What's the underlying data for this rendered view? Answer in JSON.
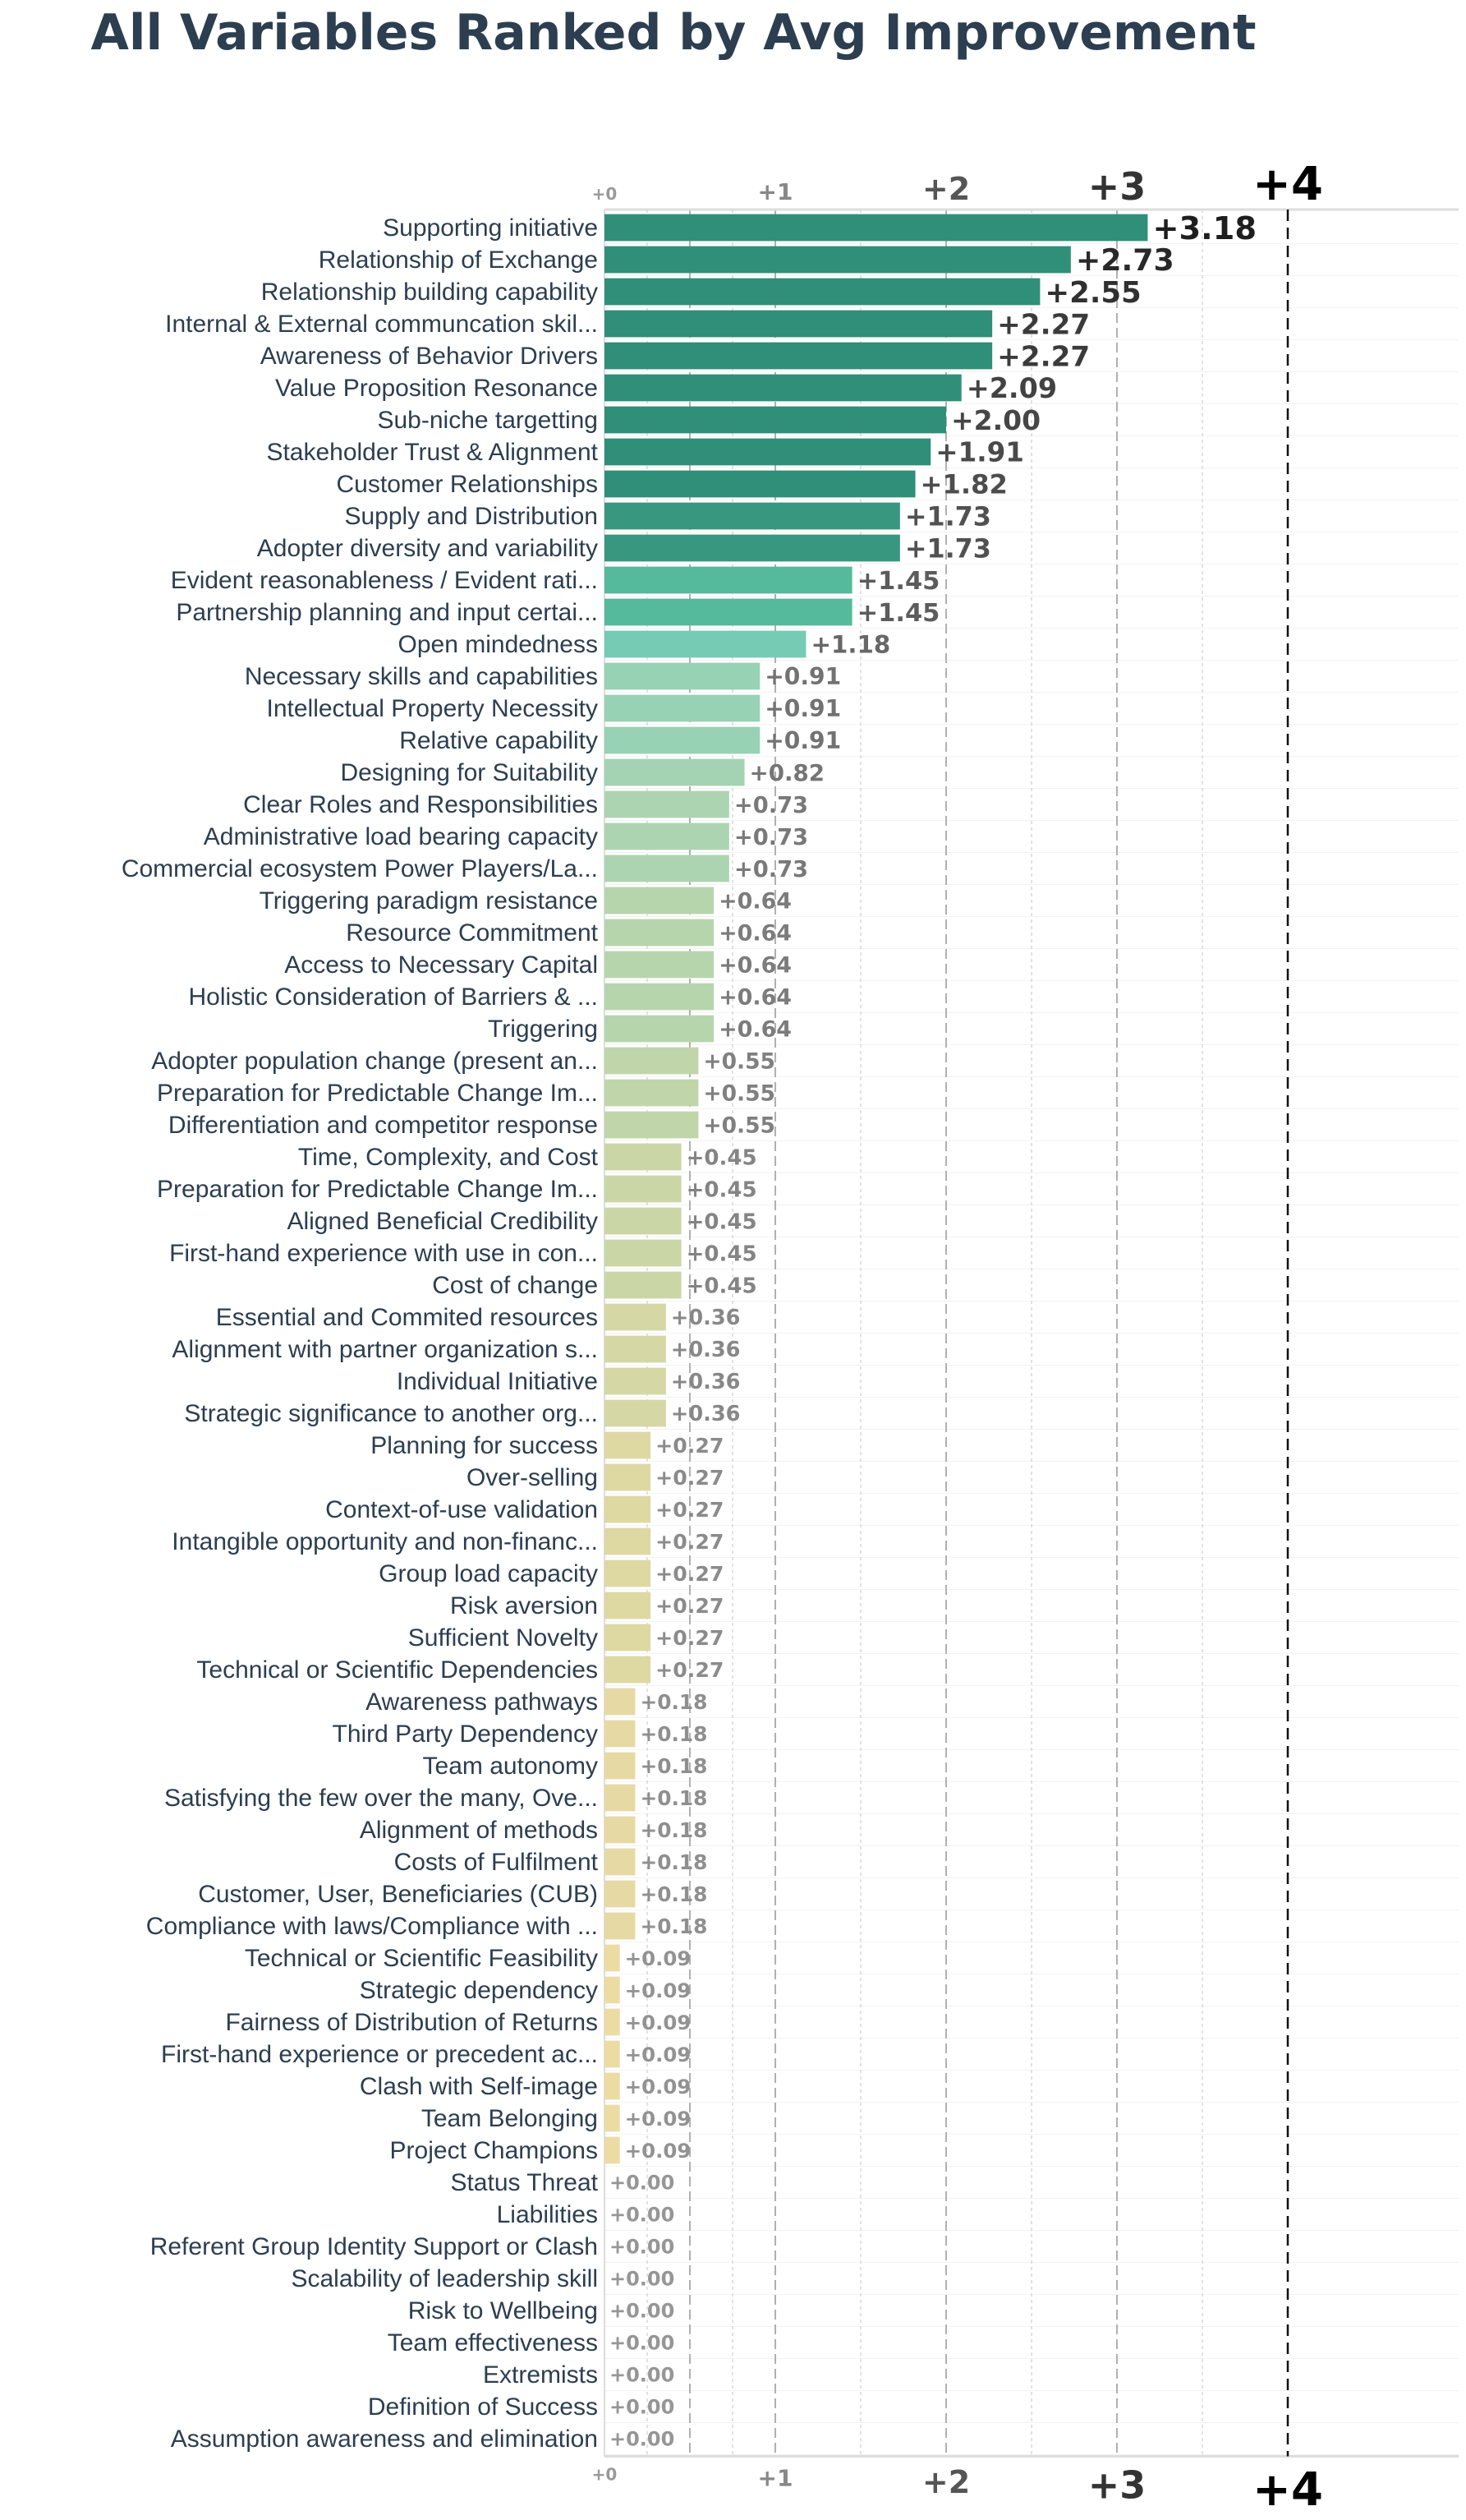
{
  "chart_data": {
    "type": "bar",
    "orientation": "horizontal",
    "title": "All Variables Ranked by Avg Improvement",
    "xlabel": "",
    "ylabel": "",
    "xlim": [
      0,
      5
    ],
    "xticks": [
      "+0",
      "+1",
      "+2",
      "+3",
      "+4"
    ],
    "reference_line": 4,
    "grid": true,
    "colorscale": [
      "#f3dfa6",
      "#e4d8a2",
      "#c7d6a8",
      "#a6d3b2",
      "#7dcfb8",
      "#55b99c",
      "#2f8f78"
    ],
    "categories": [
      "Supporting initiative",
      "Relationship of Exchange",
      "Relationship building capability",
      "Internal & External communcation skil...",
      "Awareness of Behavior Drivers",
      "Value Proposition Resonance",
      "Sub-niche targetting",
      "Stakeholder Trust & Alignment",
      "Customer Relationships",
      "Supply and Distribution",
      "Adopter diversity and variability",
      "Evident reasonableness / Evident rati...",
      "Partnership planning and input certai...",
      "Open mindedness",
      "Necessary skills and capabilities",
      "Intellectual Property Necessity",
      "Relative capability",
      "Designing for Suitability",
      "Clear Roles and Responsibilities",
      "Administrative load bearing capacity",
      "Commercial ecosystem Power Players/La...",
      "Triggering paradigm resistance",
      "Resource Commitment",
      "Access to Necessary Capital",
      "Holistic Consideration of Barriers & ...",
      "Triggering",
      "Adopter population change (present an...",
      "Preparation for Predictable Change Im...",
      "Differentiation and competitor response",
      "Time, Complexity, and Cost",
      "Preparation for Predictable Change Im...",
      "Aligned Beneficial Credibility",
      "First-hand experience with use in con...",
      "Cost of change",
      "Essential and Commited resources",
      "Alignment with partner organization s...",
      "Individual Initiative",
      "Strategic significance to another org...",
      "Planning for success",
      "Over-selling",
      "Context-of-use validation",
      "Intangible opportunity and non-financ...",
      "Group load capacity",
      "Risk aversion",
      "Sufficient Novelty",
      "Technical or Scientific Dependencies",
      "Awareness pathways",
      "Third Party Dependency",
      "Team autonomy",
      "Satisfying the few over the many, Ove...",
      "Alignment of methods",
      "Costs of Fulfilment",
      "Customer, User, Beneficiaries (CUB)",
      "Compliance with laws/Compliance with ...",
      "Technical or Scientific Feasibility",
      "Strategic dependency",
      "Fairness of Distribution of Returns",
      "First-hand experience or precedent ac...",
      "Clash with Self-image",
      "Team Belonging",
      "Project Champions",
      "Status Threat",
      "Liabilities",
      "Referent Group Identity Support or Clash",
      "Scalability of leadership skill",
      "Risk to Wellbeing",
      "Team effectiveness",
      "Extremists",
      "Definition of Success",
      "Assumption awareness and elimination"
    ],
    "values": [
      3.18,
      2.73,
      2.55,
      2.27,
      2.27,
      2.09,
      2.0,
      1.91,
      1.82,
      1.73,
      1.73,
      1.45,
      1.45,
      1.18,
      0.91,
      0.91,
      0.91,
      0.82,
      0.73,
      0.73,
      0.73,
      0.64,
      0.64,
      0.64,
      0.64,
      0.64,
      0.55,
      0.55,
      0.55,
      0.45,
      0.45,
      0.45,
      0.45,
      0.45,
      0.36,
      0.36,
      0.36,
      0.36,
      0.27,
      0.27,
      0.27,
      0.27,
      0.27,
      0.27,
      0.27,
      0.27,
      0.18,
      0.18,
      0.18,
      0.18,
      0.18,
      0.18,
      0.18,
      0.18,
      0.09,
      0.09,
      0.09,
      0.09,
      0.09,
      0.09,
      0.09,
      0,
      0,
      0,
      0,
      0,
      0,
      0,
      0,
      0
    ],
    "value_labels": [
      "+3.18",
      "+2.73",
      "+2.55",
      "+2.27",
      "+2.27",
      "+2.09",
      "+2.00",
      "+1.91",
      "+1.82",
      "+1.73",
      "+1.73",
      "+1.45",
      "+1.45",
      "+1.18",
      "+0.91",
      "+0.91",
      "+0.91",
      "+0.82",
      "+0.73",
      "+0.73",
      "+0.73",
      "+0.64",
      "+0.64",
      "+0.64",
      "+0.64",
      "+0.64",
      "+0.55",
      "+0.55",
      "+0.55",
      "+0.45",
      "+0.45",
      "+0.45",
      "+0.45",
      "+0.45",
      "+0.36",
      "+0.36",
      "+0.36",
      "+0.36",
      "+0.27",
      "+0.27",
      "+0.27",
      "+0.27",
      "+0.27",
      "+0.27",
      "+0.27",
      "+0.27",
      "+0.18",
      "+0.18",
      "+0.18",
      "+0.18",
      "+0.18",
      "+0.18",
      "+0.18",
      "+0.18",
      "+0.09",
      "+0.09",
      "+0.09",
      "+0.09",
      "+0.09",
      "+0.09",
      "+0.09",
      "+0.00",
      "+0.00",
      "+0.00",
      "+0.00",
      "+0.00",
      "+0.00",
      "+0.00",
      "+0.00",
      "+0.00"
    ]
  }
}
